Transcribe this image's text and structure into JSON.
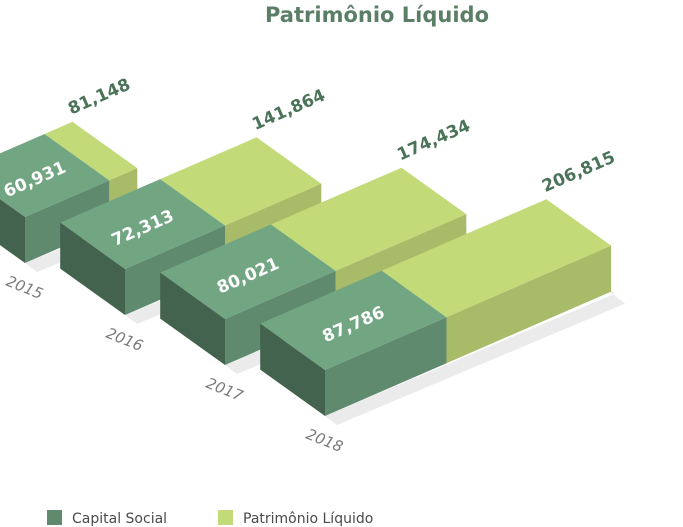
{
  "chart_data": {
    "type": "bar",
    "title": "Patrimônio Líquido",
    "categories": [
      "2015",
      "2016",
      "2017",
      "2018"
    ],
    "series": [
      {
        "name": "Capital Social",
        "values": [
          60931,
          72313,
          80021,
          87786
        ],
        "labels": [
          "60,931",
          "72,313",
          "80,021",
          "87,786"
        ]
      },
      {
        "name": "Patrimônio Líquido",
        "values": [
          81148,
          141864,
          174434,
          206815
        ],
        "labels": [
          "81,148",
          "141,864",
          "174,434",
          "206,815"
        ]
      }
    ],
    "stacking": "overlay",
    "legend_position": "bottom-left",
    "colors": {
      "capital": "#5f8a6d",
      "patrimonio": "#c3da79",
      "title": "#5b7f66",
      "value_text": "#4a7358",
      "year_text": "#7a7a7a",
      "legend_text": "#4a4a4a",
      "shadow": "#ebebeb"
    }
  }
}
